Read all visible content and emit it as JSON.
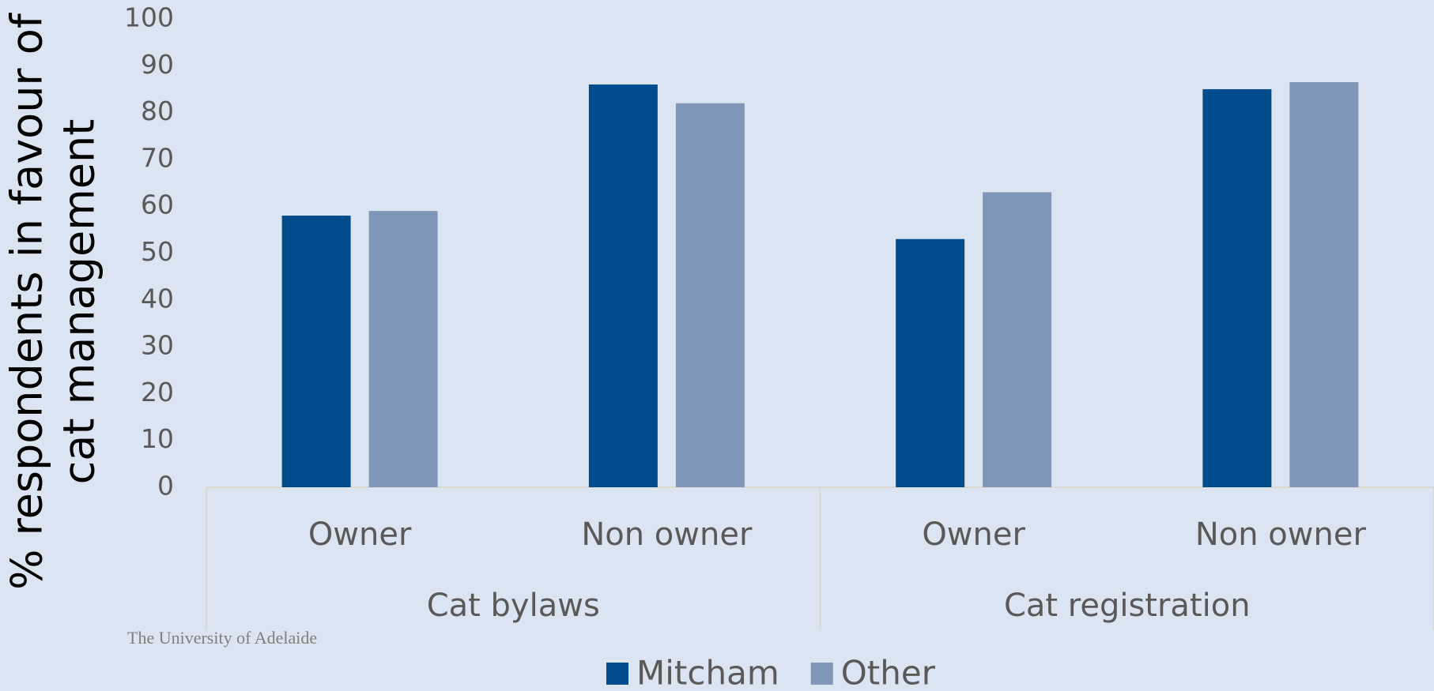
{
  "chart_data": {
    "type": "bar",
    "ylabel": [
      "% respondents in favour of",
      "cat management"
    ],
    "categories": [
      "Owner",
      "Non owner",
      "Owner",
      "Non owner"
    ],
    "groups": [
      "Cat bylaws",
      "Cat registration"
    ],
    "series": [
      {
        "name": "Mitcham",
        "color": "#004c8c",
        "values": [
          58,
          86,
          53,
          85
        ]
      },
      {
        "name": "Other",
        "color": "#8096b8",
        "values": [
          59,
          82,
          63,
          86.5
        ]
      }
    ],
    "ylim": [
      0,
      100
    ],
    "yticks": [
      0,
      10,
      20,
      30,
      40,
      50,
      60,
      70,
      80,
      90,
      100
    ],
    "grid": false,
    "legend": "bottom"
  },
  "footer": "The University of Adelaide"
}
